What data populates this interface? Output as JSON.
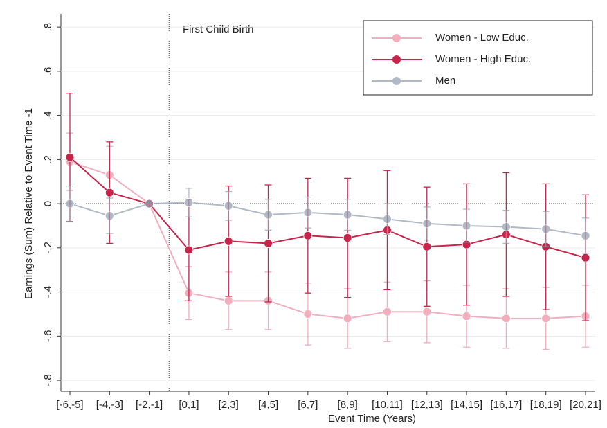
{
  "chart_data": {
    "type": "line",
    "annotation": "First Child Birth",
    "xlabel": "Event Time (Years)",
    "ylabel": "Earnings (Sum) Relative to Event Time -1",
    "categories": [
      "[-6,-5]",
      "[-4,-3]",
      "[-2,-1]",
      "[0,1]",
      "[2,3]",
      "[4,5]",
      "[6,7]",
      "[8,9]",
      "[10,11]",
      "[12,13]",
      "[14,15]",
      "[16,17]",
      "[18,19]",
      "[20,21]"
    ],
    "series": [
      {
        "name": "Women - Low Educ.",
        "color": "#f0a0b2",
        "values": [
          0.19,
          0.13,
          0,
          -0.405,
          -0.44,
          -0.44,
          -0.5,
          -0.52,
          -0.49,
          -0.49,
          -0.51,
          -0.52,
          -0.52,
          -0.51
        ],
        "errors": [
          0.13,
          0.13,
          0,
          0.12,
          0.13,
          0.13,
          0.14,
          0.135,
          0.135,
          0.14,
          0.14,
          0.135,
          0.14,
          0.14
        ]
      },
      {
        "name": "Women - High Educ.",
        "color": "#c8244a",
        "values": [
          0.21,
          0.05,
          0,
          -0.21,
          -0.17,
          -0.18,
          -0.145,
          -0.155,
          -0.12,
          -0.195,
          -0.185,
          -0.14,
          -0.195,
          -0.245
        ],
        "errors": [
          0.29,
          0.23,
          0,
          0.23,
          0.25,
          0.265,
          0.26,
          0.27,
          0.27,
          0.27,
          0.275,
          0.28,
          0.285,
          0.285
        ]
      },
      {
        "name": "Men",
        "color": "#98a2b3",
        "values": [
          0,
          -0.055,
          0,
          0.005,
          -0.01,
          -0.05,
          -0.04,
          -0.05,
          -0.07,
          -0.09,
          -0.1,
          -0.105,
          -0.115,
          -0.145
        ],
        "errors": [
          0.08,
          0.08,
          0,
          0.065,
          0.065,
          0.07,
          0.07,
          0.07,
          0.07,
          0.075,
          0.075,
          0.075,
          0.08,
          0.08
        ]
      }
    ],
    "ylim": [
      -0.85,
      0.86
    ],
    "yticks": [
      {
        "value": -0.8,
        "label": "-.8"
      },
      {
        "value": -0.6,
        "label": "-.6"
      },
      {
        "value": -0.4,
        "label": "-.4"
      },
      {
        "value": -0.2,
        "label": "-.2"
      },
      0,
      {
        "value": 0.2,
        "label": ".2"
      },
      {
        "value": 0.4,
        "label": ".4"
      },
      {
        "value": 0.6,
        "label": ".6"
      },
      {
        "value": 0.8,
        "label": ".8"
      }
    ],
    "grid": true,
    "legend": "top-right"
  }
}
